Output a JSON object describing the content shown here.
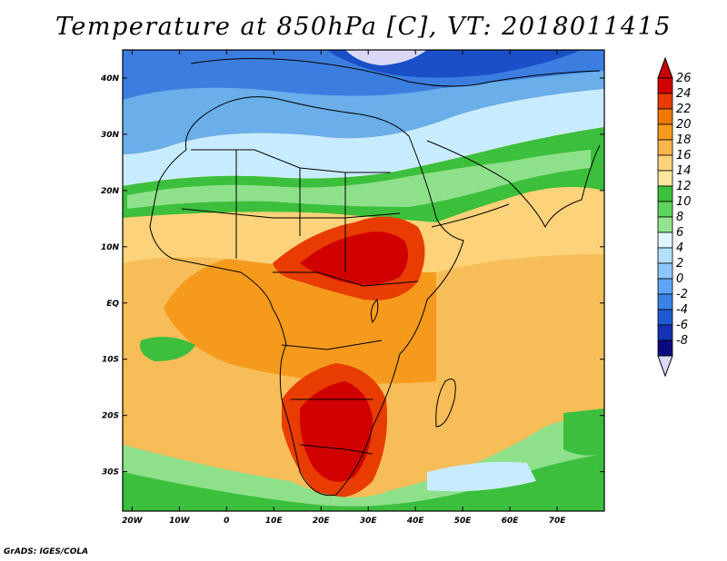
{
  "title": "Temperature at 850hPa [C], VT: 2018011415",
  "credit": "GrADS: IGES/COLA",
  "map": {
    "lon_labels": [
      "20W",
      "10W",
      "0",
      "10E",
      "20E",
      "30E",
      "40E",
      "50E",
      "60E",
      "70E"
    ],
    "lat_labels": [
      "40N",
      "30N",
      "20N",
      "10N",
      "EQ",
      "10S",
      "20S",
      "30S"
    ],
    "lon_range": [
      -22,
      80
    ],
    "lat_range": [
      -37,
      45
    ]
  },
  "colorbar": {
    "labels": [
      "26",
      "24",
      "22",
      "20",
      "18",
      "16",
      "14",
      "12",
      "10",
      "8",
      "6",
      "4",
      "2",
      "0",
      "-2",
      "-4",
      "-6",
      "-8"
    ],
    "colors": [
      "#d00000",
      "#e83c00",
      "#f07800",
      "#f59a1c",
      "#f9b64b",
      "#fcd27a",
      "#fbe69f",
      "#3cbf3c",
      "#5fd35f",
      "#93e48f",
      "#e0f5ff",
      "#b4e0ff",
      "#8cc8ff",
      "#5fa5f5",
      "#3c82e6",
      "#1e5ad2",
      "#1432b4",
      "#0a0a80"
    ],
    "under_color": "#d9d9f7",
    "over_color": "#c80000"
  },
  "legend_colors": {
    "warm_max": "#cc0a00",
    "ocean": "#f4b04c",
    "land_outline": "#000000"
  }
}
